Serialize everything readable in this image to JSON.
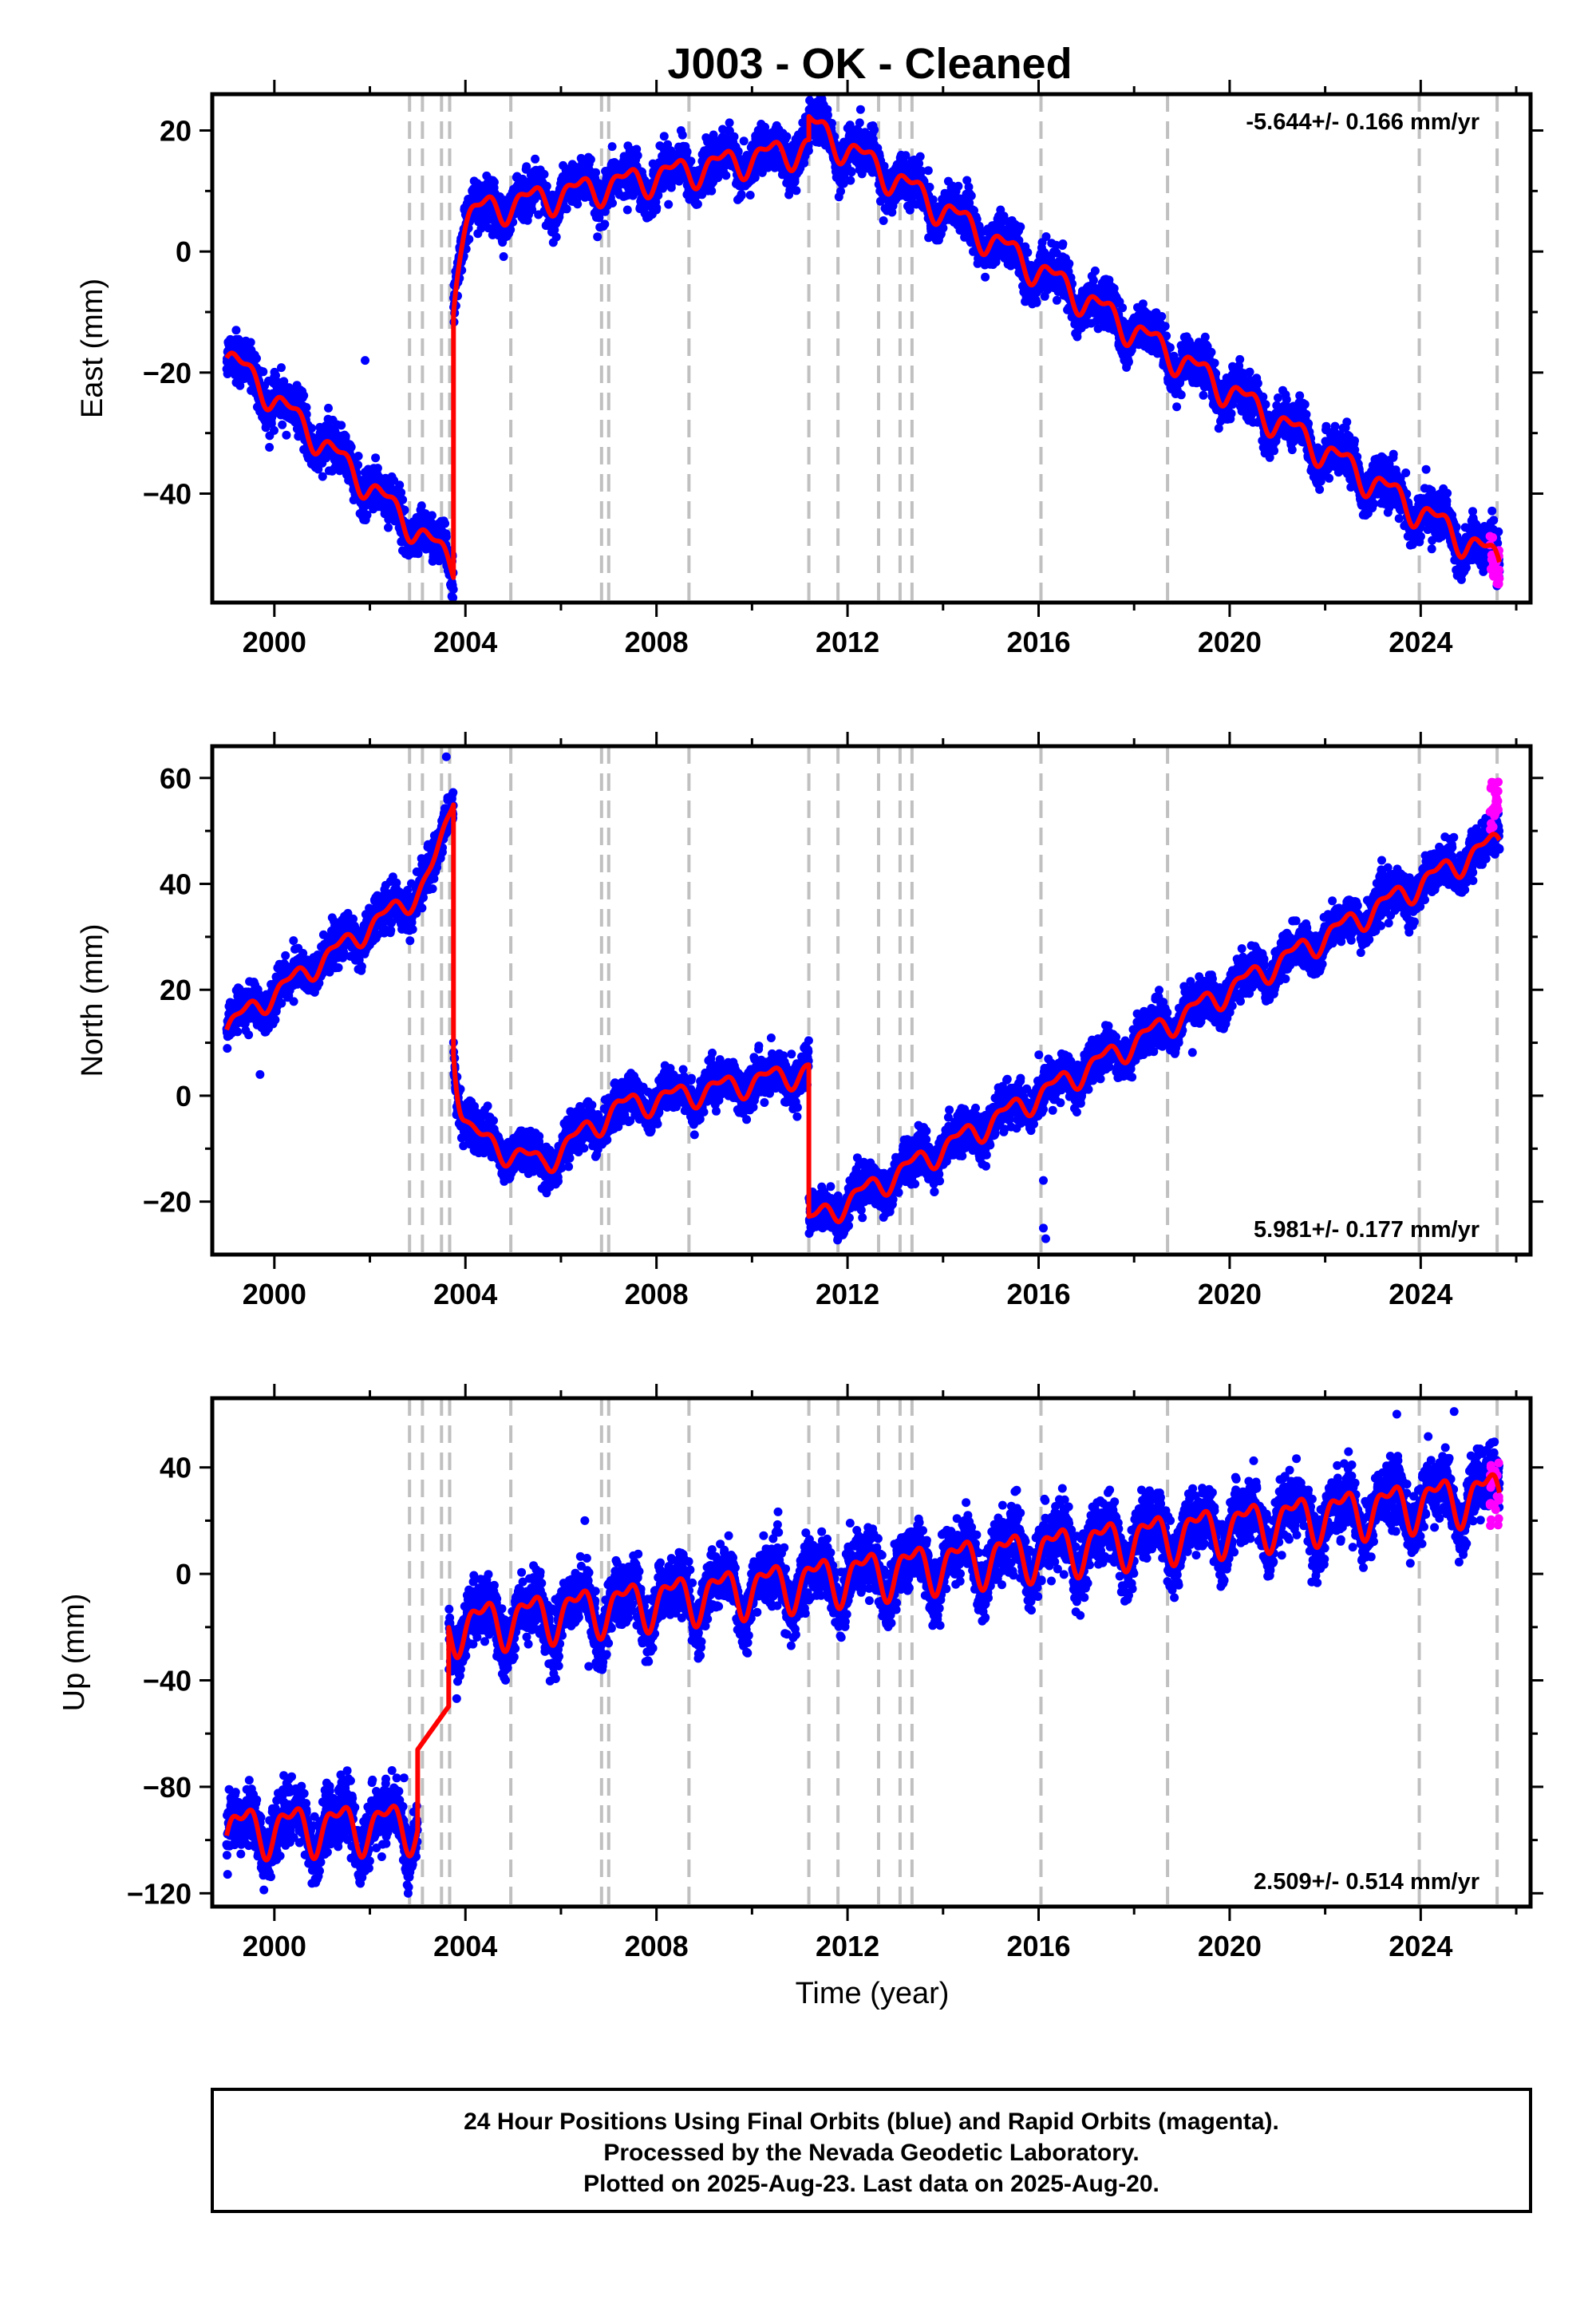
{
  "title": "J003  - OK - Cleaned",
  "x_axis_label": "Time (year)",
  "footer": {
    "line1": "24 Hour Positions Using Final Orbits (blue) and Rapid Orbits (magenta).",
    "line2": "Processed by the Nevada Geodetic Laboratory.",
    "line3": "Plotted on 2025-Aug-23. Last data on 2025-Aug-20."
  },
  "colors": {
    "final_orbits": "#0000ff",
    "rapid_orbits": "#ff00ff",
    "model": "#ff0000",
    "equipment_change": "#c0c0c0"
  },
  "chart_data": [
    {
      "type": "scatter",
      "component": "east",
      "ylabel": "East (mm)",
      "rate_label": "-5.644+/- 0.166 mm/yr",
      "rate_position": "top-right",
      "xlim": [
        1998.7,
        2026.3
      ],
      "ylim": [
        -58,
        26
      ],
      "yticks": [
        20,
        0,
        -20,
        -40
      ],
      "ytick_labels": [
        "20",
        "0",
        "−20",
        "−40"
      ],
      "xticks": [
        2000,
        2004,
        2008,
        2012,
        2016,
        2020,
        2024
      ],
      "xtick_labels": [
        "2000",
        "2004",
        "2008",
        "2012",
        "2016",
        "2020",
        "2024"
      ],
      "grid": false,
      "model_segments": [
        {
          "t0": 1999.0,
          "t1": 2003.75,
          "y0": -17.0,
          "rate": -7.3,
          "amp": 2.0
        },
        {
          "t0": 2003.75,
          "t1": 2011.19,
          "y0": 6.0,
          "rate": 1.5,
          "amp": 2.2,
          "decay_amp": -14.0,
          "decay_tau": 0.12
        },
        {
          "t0": 2011.19,
          "t1": 2025.65,
          "y0": 21.0,
          "rate": -5.0,
          "amp": 2.2
        }
      ],
      "scatter_noise": 1.8,
      "outliers": [
        [
          2001.9,
          -18.0
        ],
        [
          1999.2,
          -13.0
        ]
      ],
      "rapid": {
        "t0": 2025.45,
        "t1": 2025.65,
        "ymin": -55,
        "ymax": -47
      }
    },
    {
      "type": "scatter",
      "component": "north",
      "ylabel": "North (mm)",
      "rate_label": "5.981+/- 0.177 mm/yr",
      "rate_position": "bottom-right",
      "xlim": [
        1998.7,
        2026.3
      ],
      "ylim": [
        -30,
        66
      ],
      "yticks": [
        60,
        40,
        20,
        0,
        -20
      ],
      "ytick_labels": [
        "60",
        "40",
        "20",
        "0",
        "−20"
      ],
      "xticks": [
        2000,
        2004,
        2008,
        2012,
        2016,
        2020,
        2024
      ],
      "xtick_labels": [
        "2000",
        "2004",
        "2008",
        "2012",
        "2016",
        "2020",
        "2024"
      ],
      "grid": false,
      "model_segments": [
        {
          "t0": 1999.0,
          "t1": 2003.75,
          "y0": 13.0,
          "rate": 6.3,
          "amp": 1.8,
          "late_boost": true
        },
        {
          "t0": 2003.75,
          "t1": 2011.19,
          "y0": -8.0,
          "rate": 1.7,
          "amp": 2.0,
          "decay_amp": 18.0,
          "decay_tau": 0.15,
          "dip": true
        },
        {
          "t0": 2011.19,
          "t1": 2025.65,
          "y0": -24.0,
          "rate": 5.0,
          "amp": 2.0
        }
      ],
      "scatter_noise": 1.9,
      "outliers": [
        [
          2016.1,
          -16.0
        ],
        [
          2016.1,
          -25.0
        ],
        [
          2016.15,
          -27.0
        ],
        [
          1999.7,
          4.0
        ],
        [
          2003.6,
          64.0
        ]
      ],
      "rapid": {
        "t0": 2025.45,
        "t1": 2025.65,
        "ymin": 50,
        "ymax": 60
      }
    },
    {
      "type": "scatter",
      "component": "up",
      "ylabel": "Up (mm)",
      "rate_label": "2.509+/- 0.514 mm/yr",
      "rate_position": "bottom-right",
      "xlim": [
        1998.7,
        2026.3
      ],
      "ylim": [
        -125,
        66
      ],
      "yticks": [
        40,
        0,
        -40,
        -80,
        -120
      ],
      "ytick_labels": [
        "40",
        "0",
        "−40",
        "−80",
        "−120"
      ],
      "xticks": [
        2000,
        2004,
        2008,
        2012,
        2016,
        2020,
        2024
      ],
      "xtick_labels": [
        "2000",
        "2004",
        "2008",
        "2012",
        "2016",
        "2020",
        "2024"
      ],
      "grid": false,
      "model_segments": [
        {
          "t0": 1999.0,
          "t1": 2003.0,
          "y0": -96.0,
          "rate": 0.5,
          "amp": 8.0
        },
        {
          "t0": 2003.0,
          "t1": 2003.65,
          "y0": -66.0,
          "rate": 25.0,
          "amp": 0.0,
          "no_scatter": true
        },
        {
          "t0": 2003.65,
          "t1": 2025.65,
          "y0": -20.0,
          "rate": 2.3,
          "amp": 8.0
        }
      ],
      "scatter_noise": 5.5,
      "outliers": [
        [
          2002.8,
          -120.0
        ],
        [
          2006.5,
          20.0
        ],
        [
          2023.5,
          60.0
        ],
        [
          2024.7,
          61.0
        ]
      ],
      "rapid": {
        "t0": 2025.45,
        "t1": 2025.65,
        "ymin": 15,
        "ymax": 45
      }
    }
  ],
  "equipment_change_years": [
    2002.83,
    2003.1,
    2003.5,
    2003.67,
    2004.95,
    2006.85,
    2007.0,
    2008.68,
    2011.19,
    2011.8,
    2012.65,
    2013.1,
    2013.35,
    2016.05,
    2018.7,
    2023.97,
    2025.6
  ]
}
